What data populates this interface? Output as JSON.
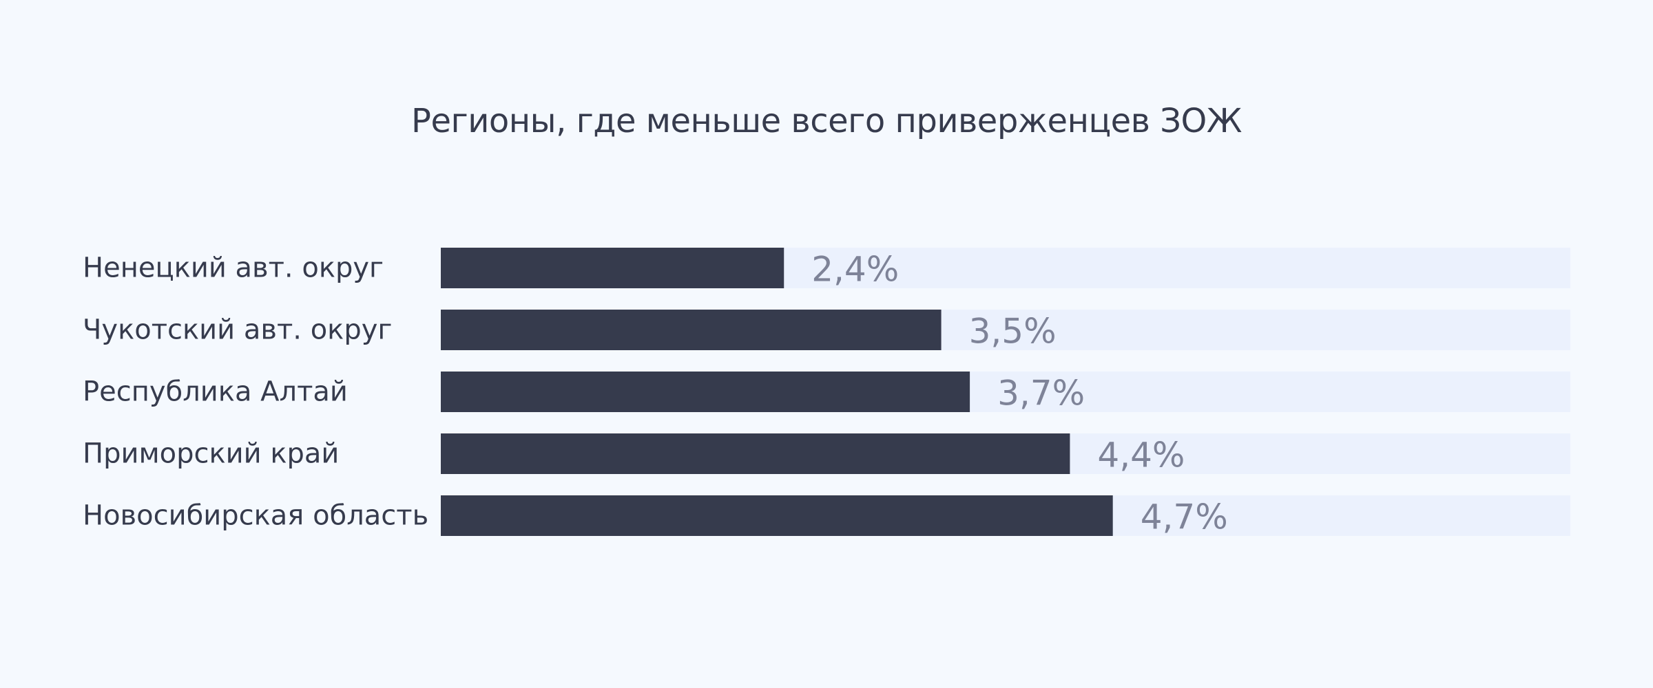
{
  "chart_data": {
    "type": "bar",
    "orientation": "horizontal",
    "title": "Регионы, где меньше всего приверженцев ЗОЖ",
    "categories": [
      "Ненецкий авт. округ",
      "Чукотский авт. округ",
      "Республика Алтай",
      "Приморский край",
      "Новосибирская область"
    ],
    "values": [
      2.4,
      3.5,
      3.7,
      4.4,
      4.7
    ],
    "value_labels": [
      "2,4%",
      "3,5%",
      "3,7%",
      "4,4%",
      "4,7%"
    ],
    "xlim": [
      0,
      7.9
    ],
    "grid": false,
    "legend": "none",
    "colors": {
      "bar": "#363b4d",
      "track": "#ebf1fd",
      "value_text": "#7e8398",
      "label_text": "#363b4d",
      "background": "#f5f9fe"
    }
  }
}
